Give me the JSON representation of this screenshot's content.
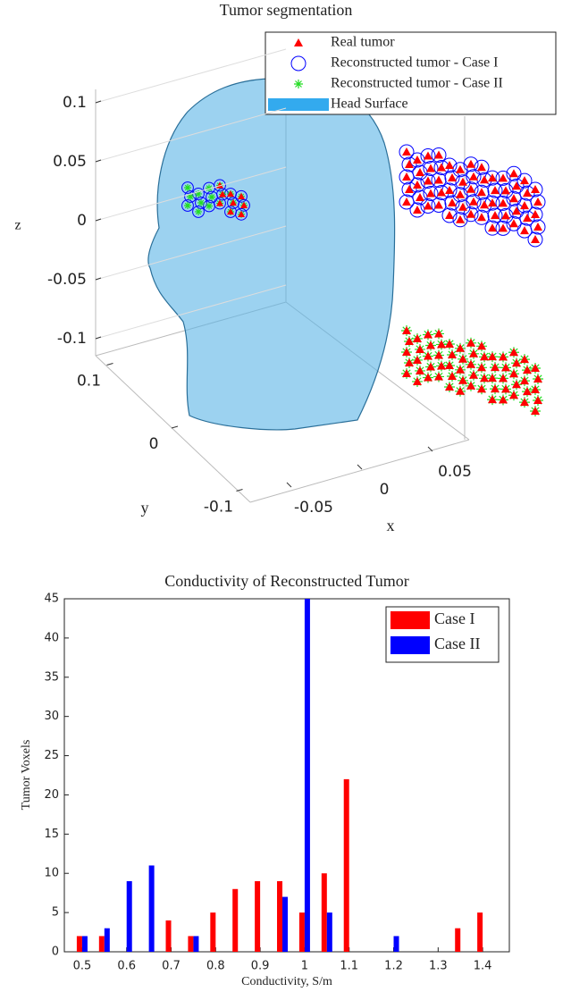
{
  "chart_data": [
    {
      "type": "scatter3d",
      "title": "Tumor segmentation",
      "series": [
        {
          "name": "Real tumor",
          "color": "#ff0000",
          "marker": "triangle"
        },
        {
          "name": "Reconstructed tumor - Case I",
          "color": "#0000ff",
          "marker": "circle"
        },
        {
          "name": "Reconstructed tumor - Case II",
          "color": "#22dd22",
          "marker": "star"
        },
        {
          "name": "Head Surface",
          "color": "#33aaee",
          "marker": "surface"
        }
      ],
      "xlabel": "x",
      "ylabel": "y",
      "zlabel": "z",
      "xlim": [
        -0.07,
        0.07
      ],
      "ylim": [
        -0.12,
        0.12
      ],
      "zlim": [
        -0.11,
        0.11
      ],
      "xticks": [
        -0.05,
        0,
        0.05
      ],
      "yticks": [
        -0.1,
        0,
        0.1
      ],
      "zticks": [
        -0.1,
        -0.05,
        0,
        0.05,
        0.1
      ],
      "grid": true,
      "legend": "upper right"
    },
    {
      "type": "bar",
      "title": "Conductivity of Reconstructed Tumor",
      "xlabel": "Conductivity, S/m",
      "ylabel": "Tumor Voxels",
      "x": [
        0.5,
        0.55,
        0.6,
        0.65,
        0.7,
        0.75,
        0.8,
        0.85,
        0.9,
        0.95,
        1.0,
        1.05,
        1.1,
        1.15,
        1.2,
        1.25,
        1.3,
        1.35,
        1.4
      ],
      "series": [
        {
          "name": "Case I",
          "color": "#ff0000",
          "values": [
            2,
            2,
            0,
            0,
            4,
            2,
            5,
            8,
            9,
            9,
            5,
            10,
            22,
            0,
            0,
            0,
            0,
            3,
            5
          ]
        },
        {
          "name": "Case II",
          "color": "#0000ff",
          "values": [
            2,
            3,
            9,
            11,
            0,
            2,
            0,
            0,
            0,
            7,
            45,
            5,
            0,
            0,
            2,
            0,
            0,
            0,
            0
          ]
        }
      ],
      "xlim": [
        0.46,
        1.46
      ],
      "ylim": [
        0,
        45
      ],
      "xticks": [
        0.5,
        0.6,
        0.7,
        0.8,
        0.9,
        1,
        1.1,
        1.2,
        1.3,
        1.4
      ],
      "yticks": [
        0,
        5,
        10,
        15,
        20,
        25,
        30,
        35,
        40,
        45
      ],
      "legend": "upper right"
    }
  ]
}
